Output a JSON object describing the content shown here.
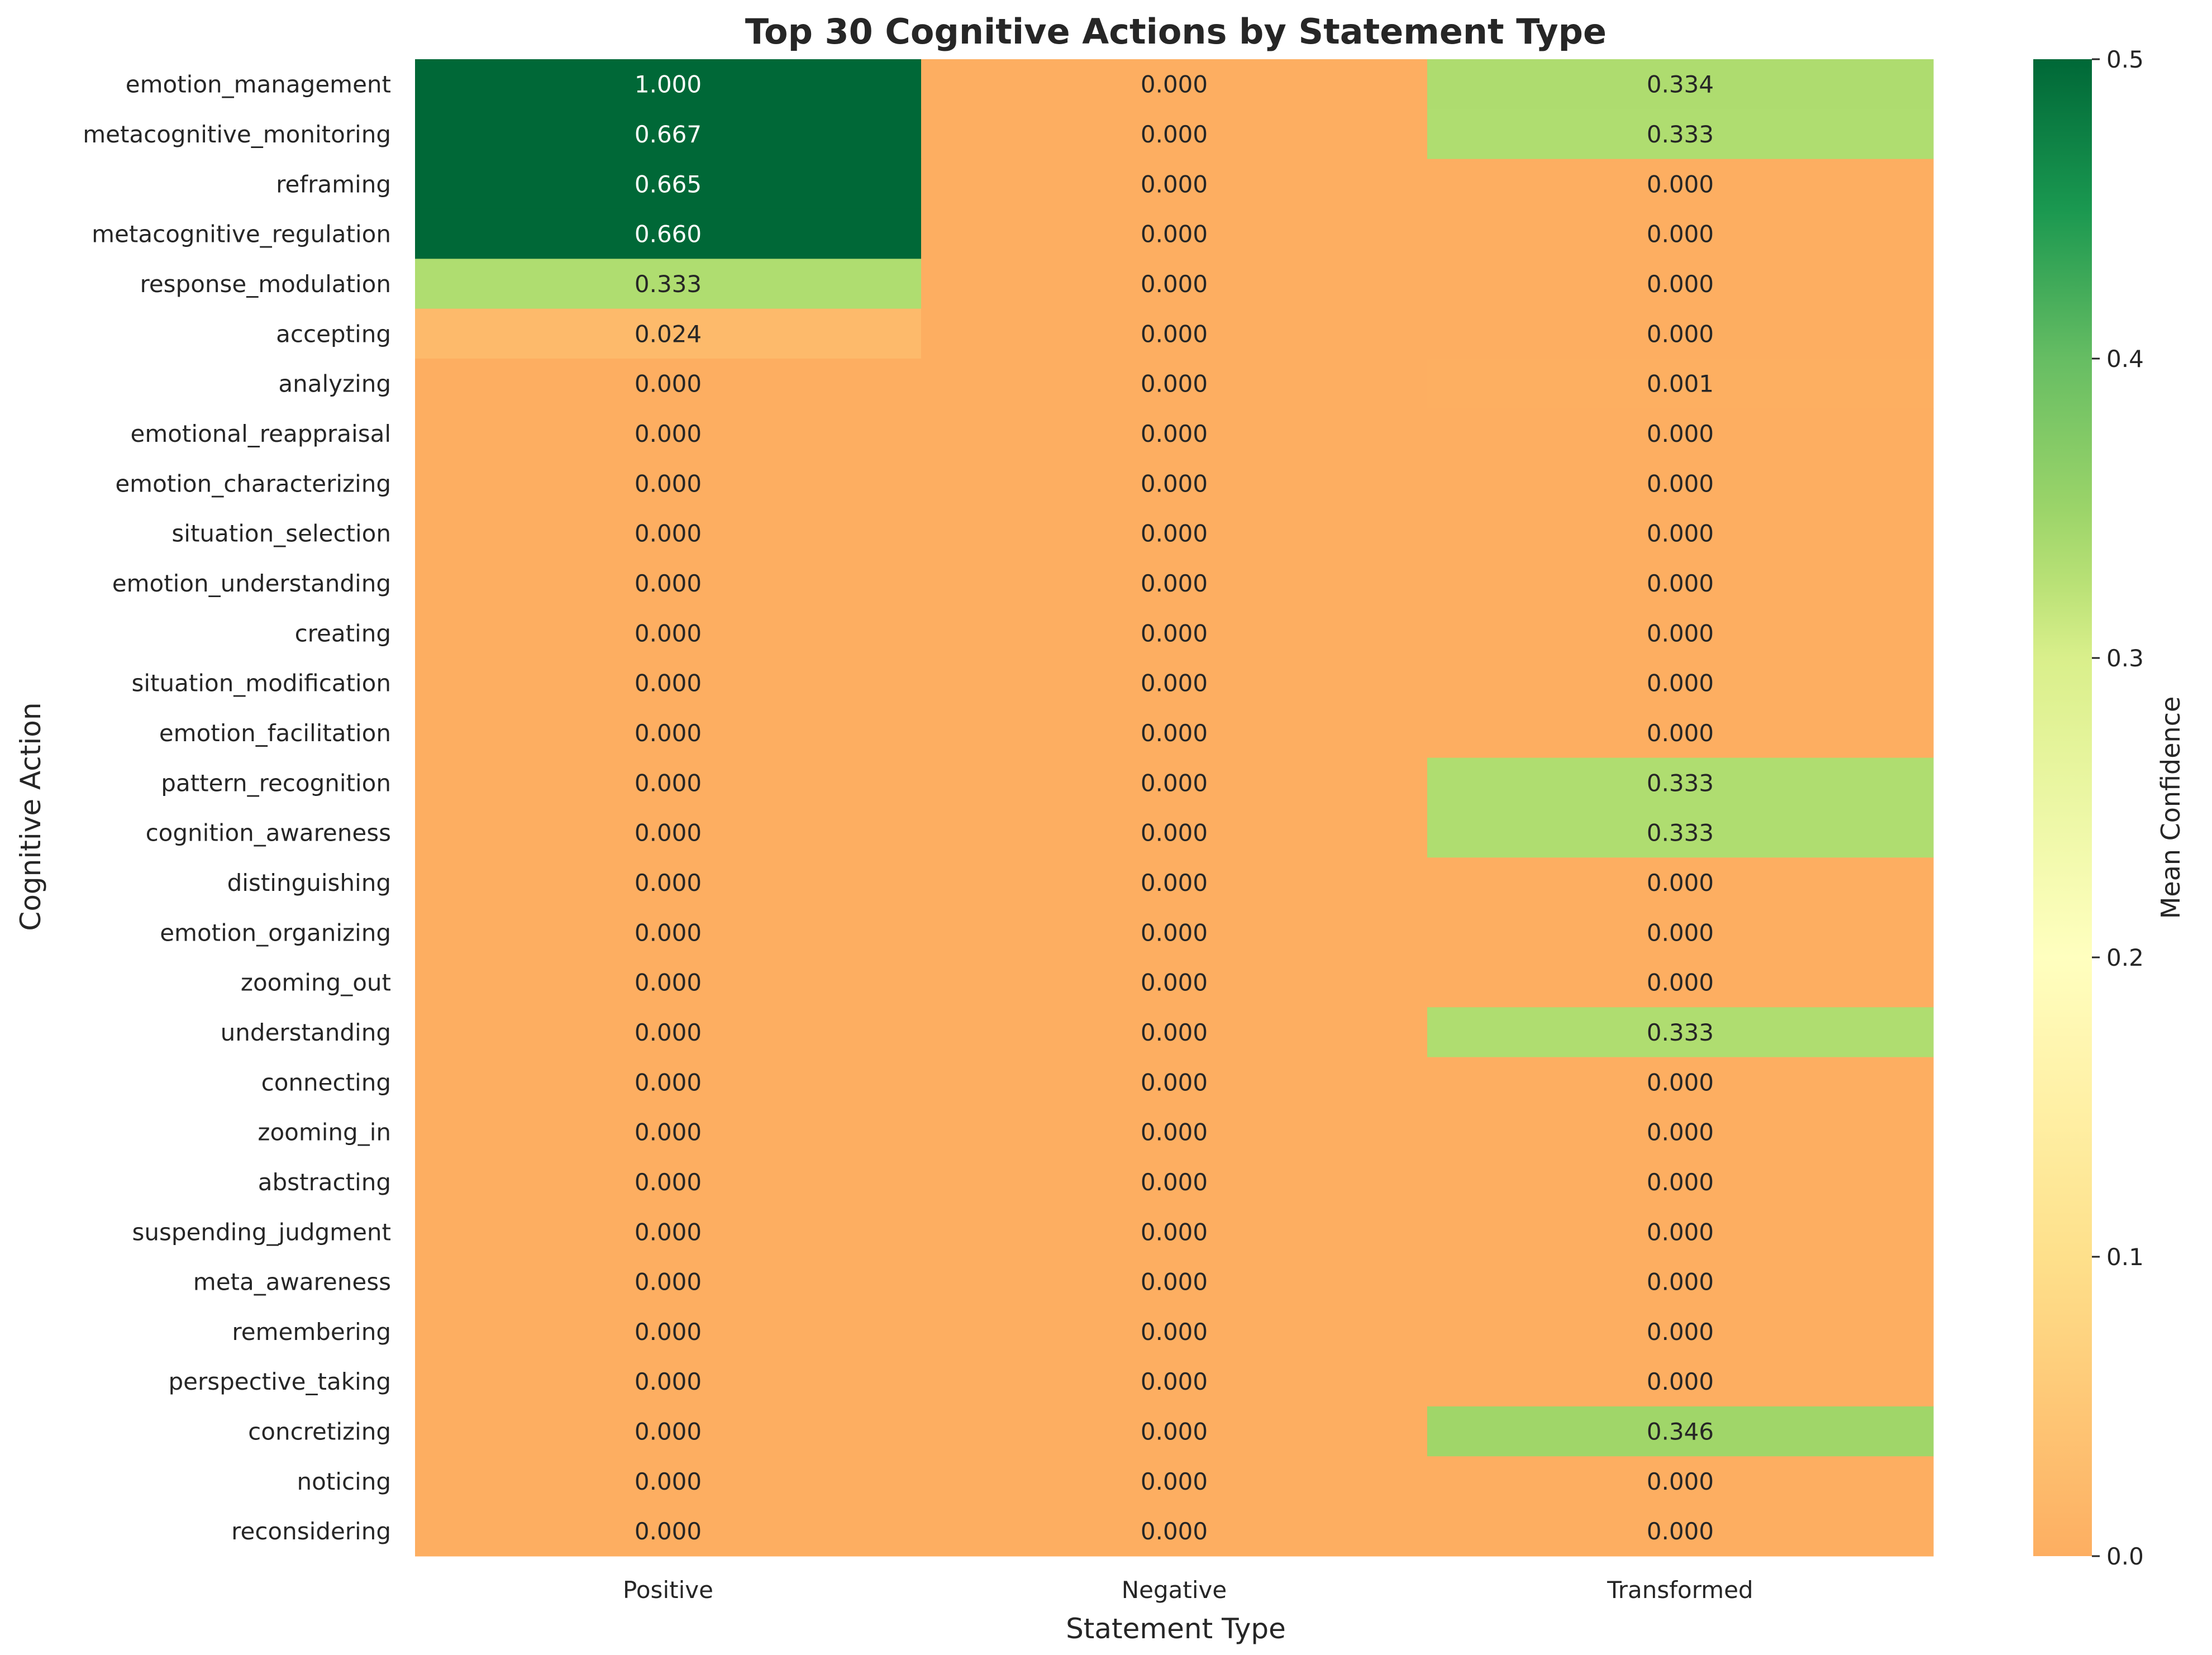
{
  "chart_data": {
    "type": "heatmap",
    "title": "Top 30 Cognitive Actions by Statement Type",
    "xlabel": "Statement Type",
    "ylabel": "Cognitive Action",
    "colorbar_label": "Mean Confidence",
    "x_categories": [
      "Positive",
      "Negative",
      "Transformed"
    ],
    "y_categories": [
      "emotion_management",
      "metacognitive_monitoring",
      "reframing",
      "metacognitive_regulation",
      "response_modulation",
      "accepting",
      "analyzing",
      "emotional_reappraisal",
      "emotion_characterizing",
      "situation_selection",
      "emotion_understanding",
      "creating",
      "situation_modification",
      "emotion_facilitation",
      "pattern_recognition",
      "cognition_awareness",
      "distinguishing",
      "emotion_organizing",
      "zooming_out",
      "understanding",
      "connecting",
      "zooming_in",
      "abstracting",
      "suspending_judgment",
      "meta_awareness",
      "remembering",
      "perspective_taking",
      "concretizing",
      "noticing",
      "reconsidering"
    ],
    "values": [
      [
        1.0,
        0.0,
        0.334
      ],
      [
        0.667,
        0.0,
        0.333
      ],
      [
        0.665,
        0.0,
        0.0
      ],
      [
        0.66,
        0.0,
        0.0
      ],
      [
        0.333,
        0.0,
        0.0
      ],
      [
        0.024,
        0.0,
        0.0
      ],
      [
        0.0,
        0.0,
        0.001
      ],
      [
        0.0,
        0.0,
        0.0
      ],
      [
        0.0,
        0.0,
        0.0
      ],
      [
        0.0,
        0.0,
        0.0
      ],
      [
        0.0,
        0.0,
        0.0
      ],
      [
        0.0,
        0.0,
        0.0
      ],
      [
        0.0,
        0.0,
        0.0
      ],
      [
        0.0,
        0.0,
        0.0
      ],
      [
        0.0,
        0.0,
        0.333
      ],
      [
        0.0,
        0.0,
        0.333
      ],
      [
        0.0,
        0.0,
        0.0
      ],
      [
        0.0,
        0.0,
        0.0
      ],
      [
        0.0,
        0.0,
        0.0
      ],
      [
        0.0,
        0.0,
        0.333
      ],
      [
        0.0,
        0.0,
        0.0
      ],
      [
        0.0,
        0.0,
        0.0
      ],
      [
        0.0,
        0.0,
        0.0
      ],
      [
        0.0,
        0.0,
        0.0
      ],
      [
        0.0,
        0.0,
        0.0
      ],
      [
        0.0,
        0.0,
        0.0
      ],
      [
        0.0,
        0.0,
        0.0
      ],
      [
        0.0,
        0.0,
        0.346
      ],
      [
        0.0,
        0.0,
        0.0
      ],
      [
        0.0,
        0.0,
        0.0
      ]
    ],
    "value_format_decimals": 3,
    "color_range": [
      0.0,
      0.5
    ],
    "colormap": "RdYlGn",
    "colorbar_ticks": [
      "0.0",
      "0.1",
      "0.2",
      "0.3",
      "0.4",
      "0.5"
    ],
    "colorbar_tick_values": [
      0.0,
      0.1,
      0.2,
      0.3,
      0.4,
      0.5
    ],
    "colors": {
      "text_dark": "#262626",
      "text_light": "#ffffff",
      "background": "#ffffff"
    }
  }
}
